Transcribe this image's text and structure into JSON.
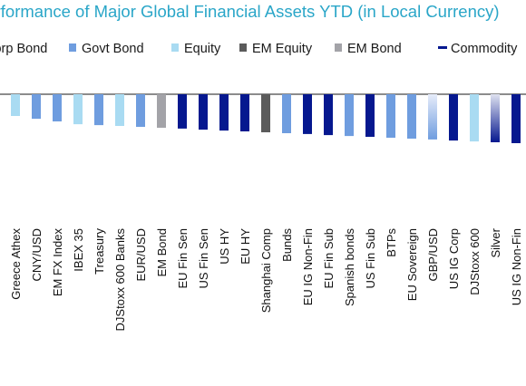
{
  "chart_data": {
    "type": "bar",
    "title": "Performance of Major Global Financial Assets YTD (in Local Currency)",
    "legend_position": "top",
    "legend": [
      {
        "name": "Corp Bond",
        "color": "#06188f",
        "swatch": "square"
      },
      {
        "name": "Govt Bond",
        "color": "#6f9ddf",
        "swatch": "square"
      },
      {
        "name": "Equity",
        "color": "#a9dbf2",
        "swatch": "square"
      },
      {
        "name": "EM Equity",
        "color": "#5b5b5b",
        "swatch": "square"
      },
      {
        "name": "EM Bond",
        "color": "#a3a3a8",
        "swatch": "square"
      },
      {
        "name": "Commodity",
        "color": "#06188f",
        "swatch": "line"
      }
    ],
    "categories": [
      "Greece Athex",
      "CNY/USD",
      "EM FX Index",
      "IBEX 35",
      "Treasury",
      "DJStoxx 600 Banks",
      "EUR/USD",
      "EM Bond",
      "EU Fin Sen",
      "US Fin Sen",
      "US HY",
      "EU HY",
      "Shanghai Comp",
      "Bunds",
      "EU IG Non-Fin",
      "EU Fin Sub",
      "Spanish bonds",
      "US Fin Sub",
      "BTPs",
      "EU Sovereign",
      "GBP/USD",
      "US IG Corp",
      "DJStoxx 600",
      "Silver",
      "US IG Non-Fin"
    ],
    "values": [
      -1.0,
      -1.13,
      -1.25,
      -1.38,
      -1.42,
      -1.46,
      -1.5,
      -1.54,
      -1.58,
      -1.63,
      -1.67,
      -1.71,
      -1.75,
      -1.79,
      -1.83,
      -1.88,
      -1.92,
      -1.96,
      -2.0,
      -2.04,
      -2.08,
      -2.13,
      -2.17,
      -2.21,
      -2.25
    ],
    "bar_colors": [
      "#a9dbf2",
      "#6f9ddf",
      "#6f9ddf",
      "#a9dbf2",
      "#6f9ddf",
      "#a9dbf2",
      "#6f9ddf",
      "#a3a3a8",
      "#06188f",
      "#06188f",
      "#06188f",
      "#06188f",
      "#5b5b5b",
      "#6f9ddf",
      "#06188f",
      "#06188f",
      "#6f9ddf",
      "#06188f",
      "#6f9ddf",
      "#6f9ddf",
      "#6f9ddf",
      "#06188f",
      "#a9dbf2",
      "#06188f",
      "#06188f"
    ],
    "gradient_bars": [
      "GBP/USD",
      "Silver"
    ],
    "ylim": [
      -5,
      0
    ],
    "xlabel": "",
    "ylabel": "",
    "grid": false
  }
}
